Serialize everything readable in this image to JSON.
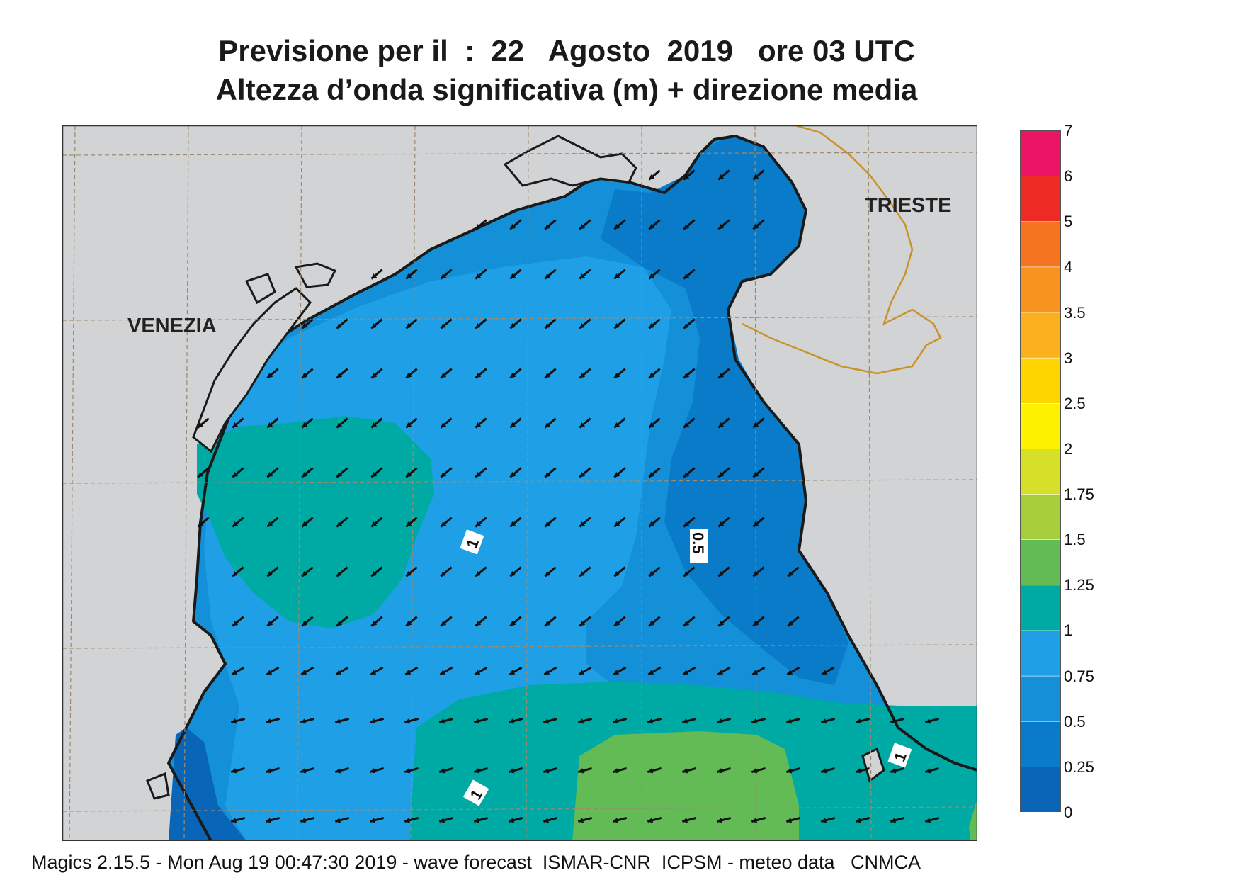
{
  "title_line1": "Previsione per il  :  22   Agosto  2019   ore 03 UTC",
  "title_line2": "Altezza d’onda significativa (m) + direzione media",
  "footer": "Magics 2.15.5 - Mon Aug 19 00:47:30 2019 - wave forecast  ISMAR-CNR  ICPSM - meteo data   CNMCA",
  "cities": [
    {
      "name": "VENEZIA"
    },
    {
      "name": "TRIESTE"
    }
  ],
  "contour_labels": [
    "1",
    "0.5",
    "1",
    "1"
  ],
  "legend": {
    "levels": [
      "0",
      "0.25",
      "0.5",
      "0.75",
      "1",
      "1.25",
      "1.5",
      "1.75",
      "2",
      "2.5",
      "3",
      "3.5",
      "4",
      "5",
      "6",
      "7"
    ],
    "colors": [
      "#0865b8",
      "#0a7bc8",
      "#1490d8",
      "#1fa0e6",
      "#00aaa4",
      "#62bb55",
      "#a6cd3a",
      "#d6e028",
      "#fff200",
      "#ffd500",
      "#fbb01e",
      "#f7931e",
      "#f47420",
      "#ee2a24",
      "#ec1565"
    ]
  },
  "colors": {
    "land": "#d2d3d5",
    "coast": "#1a1a1a",
    "border": "#c8932a",
    "grid": "#9c8a6e",
    "arrow": "#111111"
  }
}
